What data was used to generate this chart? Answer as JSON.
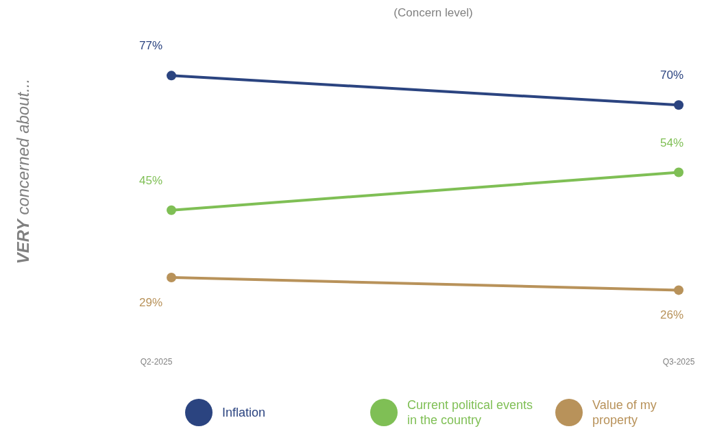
{
  "chart_data": {
    "type": "line",
    "title": "(Concern level)",
    "ylabel": "VERY concerned about...",
    "categories": [
      "Q2-2025",
      "Q3-2025"
    ],
    "series": [
      {
        "name": "Inflation",
        "color": "#2b4480",
        "values": [
          77,
          70
        ],
        "value_labels": [
          "77%",
          "70%"
        ]
      },
      {
        "name": "Current political events in the country",
        "color": "#7fbf55",
        "values": [
          45,
          54
        ],
        "value_labels": [
          "45%",
          "54%"
        ]
      },
      {
        "name": "Value of my property",
        "color": "#b8925a",
        "values": [
          29,
          26
        ],
        "value_labels": [
          "29%",
          "26%"
        ]
      }
    ],
    "marker": "circle",
    "legend": "bottom",
    "grid": false
  }
}
